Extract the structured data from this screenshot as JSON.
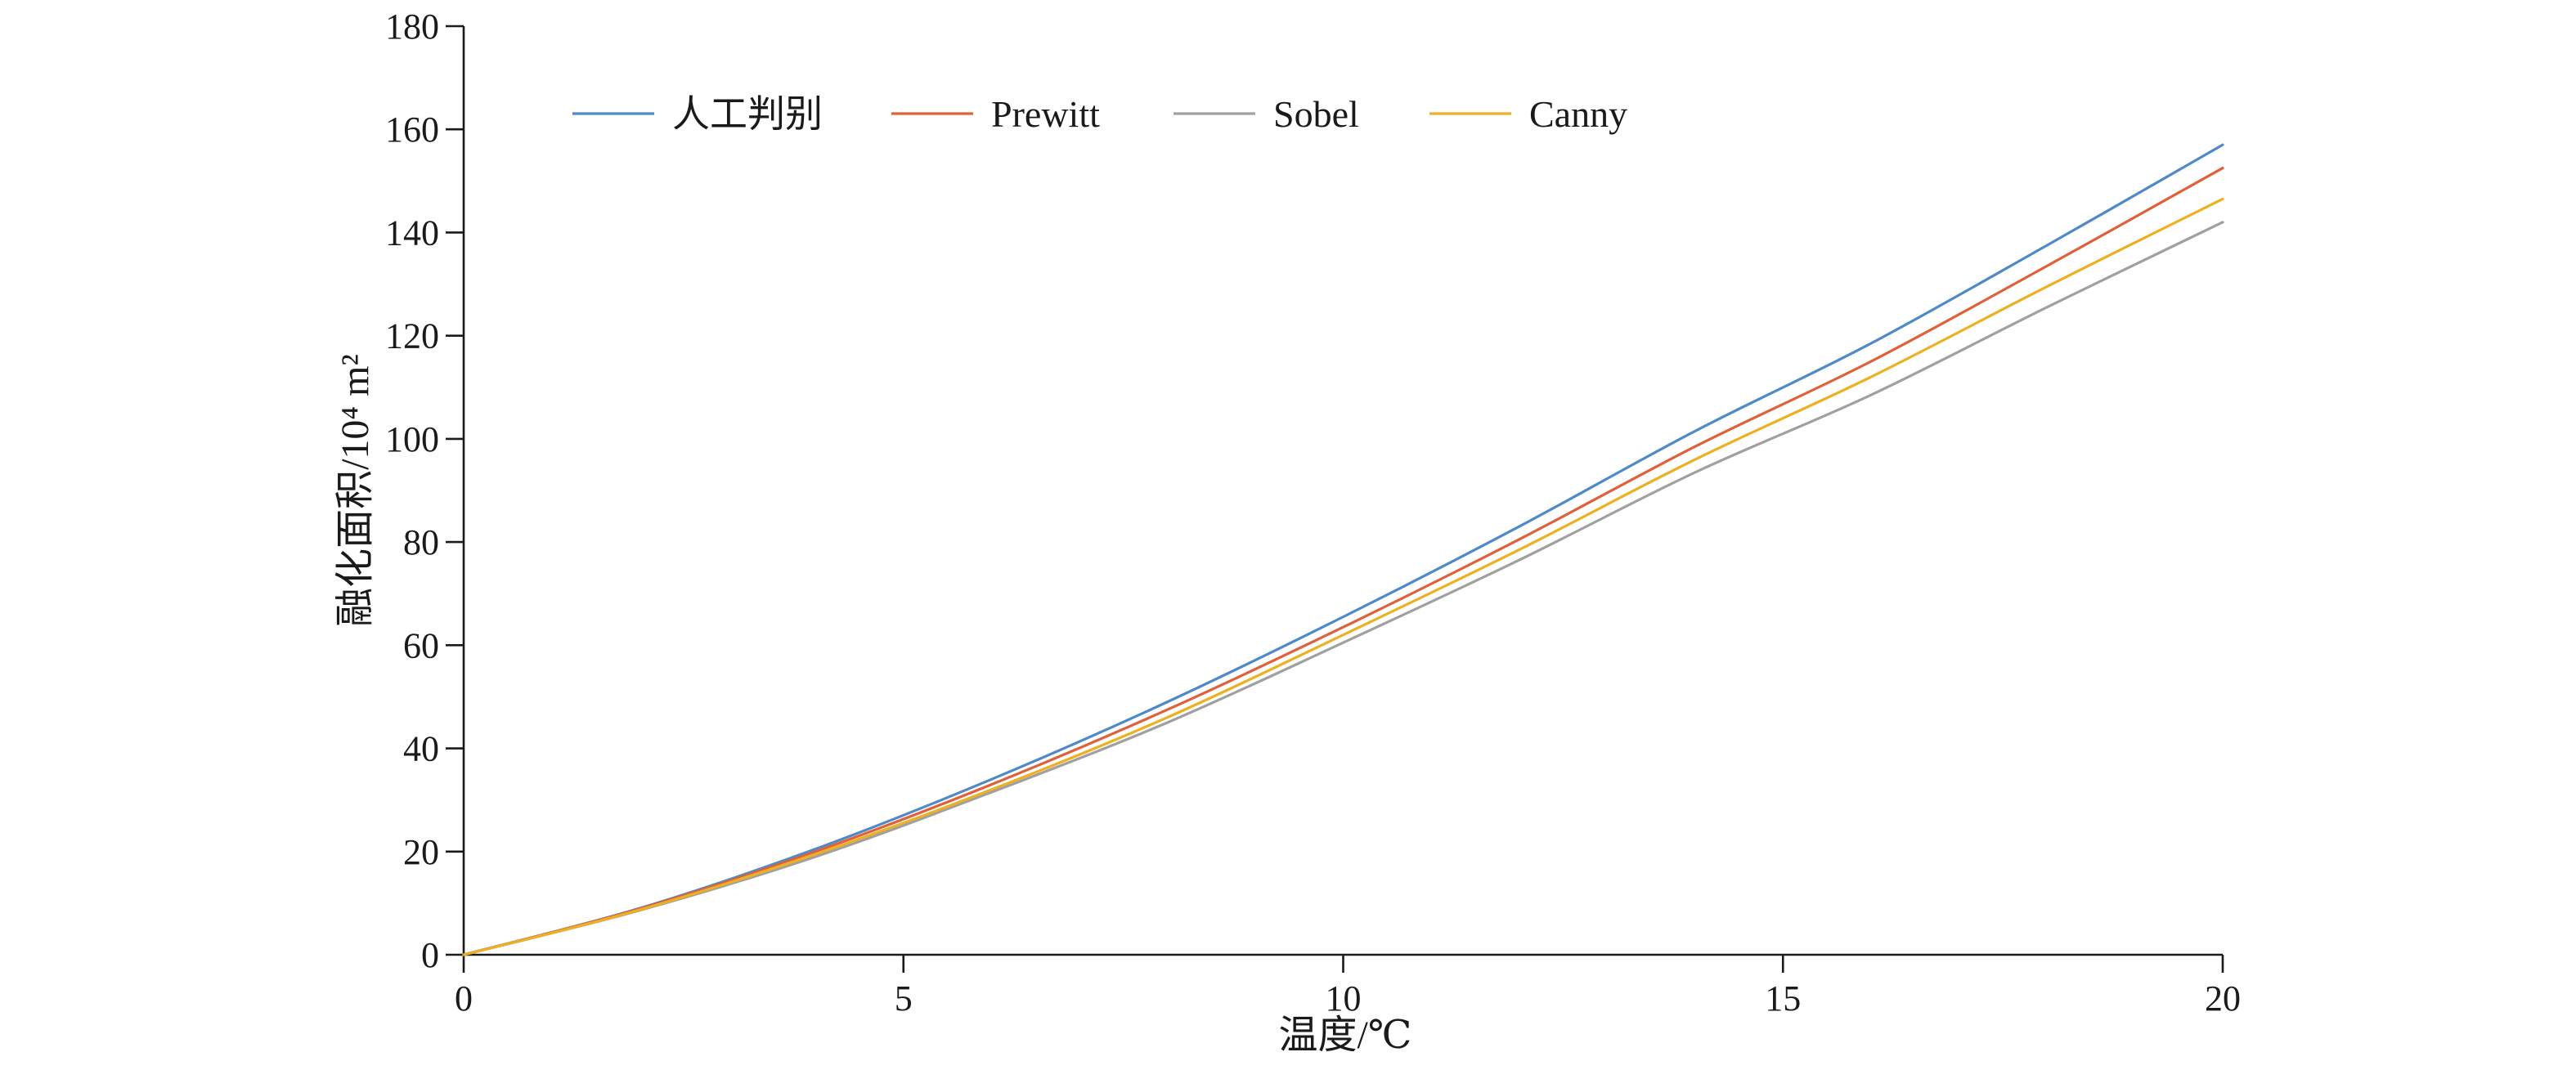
{
  "chart_data": {
    "type": "line",
    "title": "",
    "xlabel": "温度/℃",
    "ylabel": "融化面积/10⁴ m²",
    "xlim": [
      0,
      20
    ],
    "ylim": [
      0,
      180
    ],
    "x_ticks": [
      0,
      5,
      10,
      15,
      20
    ],
    "y_ticks": [
      0,
      20,
      40,
      60,
      80,
      100,
      120,
      140,
      160,
      180
    ],
    "grid": false,
    "legend_position": "top-left",
    "x": [
      0,
      2,
      4,
      6,
      8,
      10,
      12,
      14,
      16,
      18,
      20
    ],
    "series": [
      {
        "name": "人工判别",
        "color": "#4e8ac8",
        "values": [
          0,
          9,
          20.5,
          34,
          49,
          65.5,
          83,
          101.5,
          118.5,
          137.5,
          157
        ]
      },
      {
        "name": "Prewitt",
        "color": "#e0603a",
        "values": [
          0,
          8.9,
          20,
          33,
          47.5,
          63.5,
          80.5,
          98.5,
          115,
          133.5,
          152.5
        ]
      },
      {
        "name": "Sobel",
        "color": "#a0a0a0",
        "values": [
          0,
          8.6,
          19,
          31.5,
          45,
          60.5,
          76.5,
          93.5,
          108.5,
          125.5,
          142
        ]
      },
      {
        "name": "Canny",
        "color": "#edb020",
        "values": [
          0,
          8.7,
          19.5,
          32,
          46,
          62,
          78.5,
          96,
          112,
          129.5,
          146.5
        ]
      }
    ]
  }
}
